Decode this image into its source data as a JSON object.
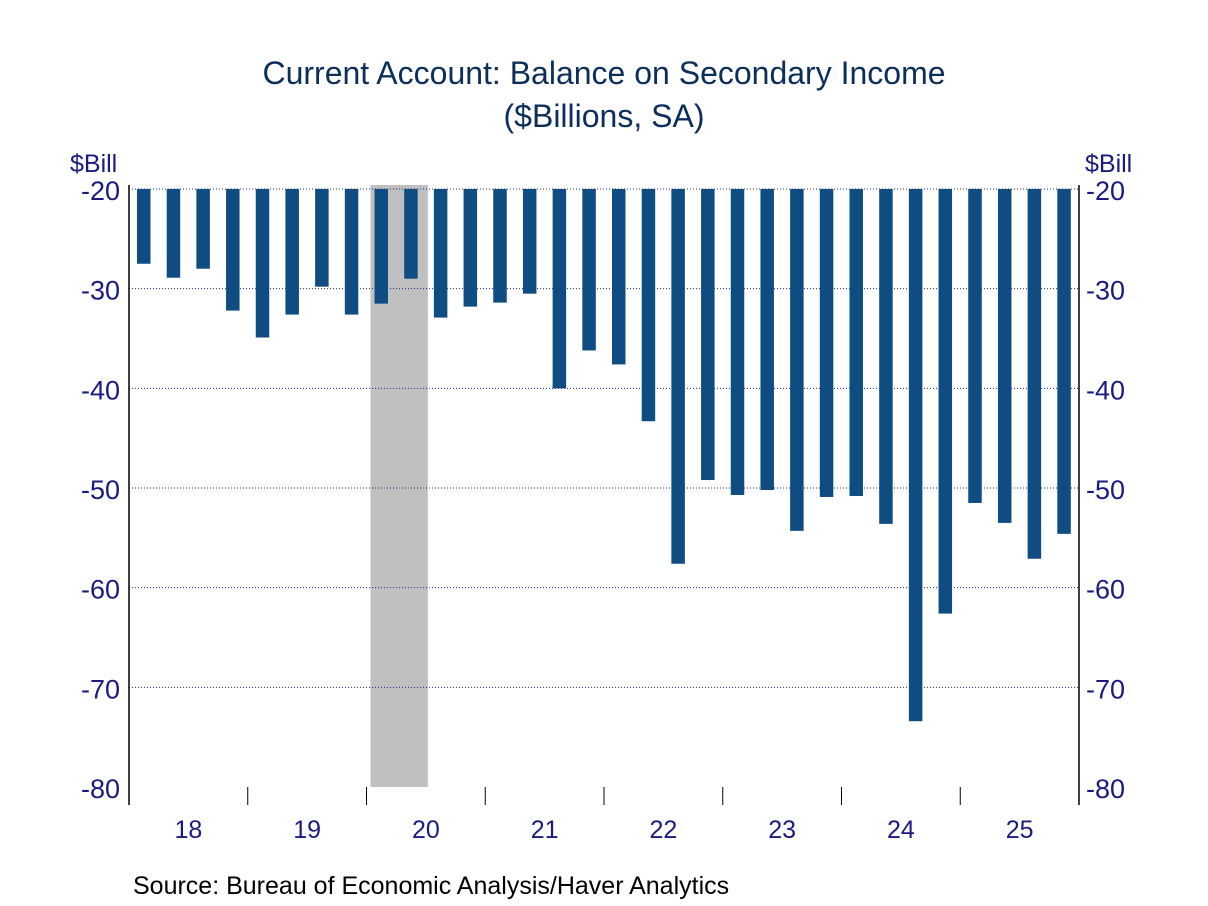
{
  "chart_data": {
    "type": "bar",
    "title": "Current Account: Balance on Secondary Income",
    "subtitle": "($Billions, SA)",
    "ylabel_left": "$Bill",
    "ylabel_right": "$Bill",
    "ylim": [
      -80,
      -20
    ],
    "yticks": [
      -20,
      -30,
      -40,
      -50,
      -60,
      -70,
      -80
    ],
    "ytick_labels": [
      "-20",
      "-30",
      "-40",
      "-50",
      "-60",
      "-70",
      "-80"
    ],
    "x_year_labels": [
      "18",
      "19",
      "20",
      "21",
      "22",
      "23",
      "24",
      "25"
    ],
    "frequency": "quarterly",
    "categories": [
      "2018Q1",
      "2018Q2",
      "2018Q3",
      "2018Q4",
      "2019Q1",
      "2019Q2",
      "2019Q3",
      "2019Q4",
      "2020Q1",
      "2020Q2",
      "2020Q3",
      "2020Q4",
      "2021Q1",
      "2021Q2",
      "2021Q3",
      "2021Q4",
      "2022Q1",
      "2022Q2",
      "2022Q3",
      "2022Q4",
      "2023Q1",
      "2023Q2",
      "2023Q3",
      "2023Q4",
      "2024Q1",
      "2024Q2",
      "2024Q3",
      "2024Q4",
      "2025Q1",
      "2025Q2",
      "2025Q3",
      "2025Q4"
    ],
    "values": [
      -27.5,
      -28.9,
      -28.0,
      -32.2,
      -34.9,
      -32.6,
      -29.8,
      -32.6,
      -31.5,
      -29.0,
      -32.9,
      -31.8,
      -31.4,
      -30.5,
      -40.0,
      -36.2,
      -37.6,
      -43.3,
      -57.6,
      -49.2,
      -50.7,
      -50.2,
      -54.3,
      -50.9,
      -50.8,
      -53.6,
      -73.4,
      -62.6,
      -51.5,
      -53.5,
      -57.1,
      -54.6
    ],
    "recession_shading": [
      "2020Q1",
      "2020Q2"
    ],
    "grid": true,
    "colors": {
      "bar": "#0f4c81",
      "recession": "#c0c0c0",
      "text": "#1a1a80",
      "title": "#0b2f5a"
    },
    "source": "Source:  Bureau of Economic Analysis/Haver Analytics"
  }
}
